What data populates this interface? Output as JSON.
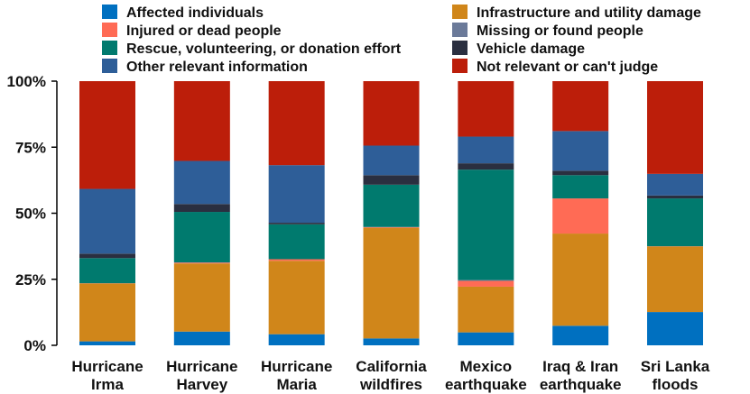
{
  "chart_data": {
    "type": "bar",
    "stacked": true,
    "categories": [
      [
        "Hurricane",
        "Irma"
      ],
      [
        "Hurricane",
        "Harvey"
      ],
      [
        "Hurricane",
        "Maria"
      ],
      [
        "California",
        "wildfires"
      ],
      [
        "Mexico",
        "earthquake"
      ],
      [
        "Iraq & Iran",
        "earthquake"
      ],
      [
        "Sri Lanka",
        "floods"
      ]
    ],
    "ylim": [
      0,
      100
    ],
    "yticks": [
      0,
      25,
      50,
      75,
      100
    ],
    "ytick_labels": [
      "0%",
      "25%",
      "50%",
      "75%",
      "100%"
    ],
    "grid": false,
    "legend_position": "top",
    "series": [
      {
        "name": "Affected individuals",
        "color": "#0070C0",
        "values": [
          1.5,
          5.2,
          4.2,
          2.6,
          4.9,
          7.4,
          12.6
        ]
      },
      {
        "name": "Infrastructure and utility damage",
        "color": "#D0861A",
        "values": [
          21.9,
          25.8,
          27.8,
          41.9,
          17.3,
          34.9,
          24.8
        ]
      },
      {
        "name": "Injured or dead people",
        "color": "#FF6B55",
        "values": [
          0.1,
          0.3,
          0.6,
          0.2,
          2.2,
          13.3,
          0.1
        ]
      },
      {
        "name": "Missing or found people",
        "color": "#6B7A99",
        "values": [
          0.0,
          0.1,
          0.0,
          0.1,
          0.3,
          0.0,
          0.0
        ]
      },
      {
        "name": "Rescue, volunteering, or donation effort",
        "color": "#007A6E",
        "values": [
          9.5,
          19.1,
          13.2,
          16.0,
          41.8,
          8.8,
          18.1
        ]
      },
      {
        "name": "Vehicle damage",
        "color": "#2A2F40",
        "values": [
          1.7,
          3.0,
          0.6,
          3.6,
          2.4,
          1.7,
          1.1
        ]
      },
      {
        "name": "Other relevant information",
        "color": "#2E5E98",
        "values": [
          24.5,
          16.3,
          21.8,
          11.2,
          10.1,
          15.0,
          8.2
        ]
      },
      {
        "name": "Not relevant or can't judge",
        "color": "#BC1E0A",
        "values": [
          40.8,
          30.2,
          31.8,
          24.4,
          21.0,
          18.9,
          35.1
        ]
      }
    ],
    "legend_order": [
      "Affected individuals",
      "Injured or dead people",
      "Rescue, volunteering, or donation effort",
      "Other relevant information",
      "Infrastructure and utility damage",
      "Missing or found people",
      "Vehicle damage",
      "Not relevant or can't judge"
    ]
  }
}
